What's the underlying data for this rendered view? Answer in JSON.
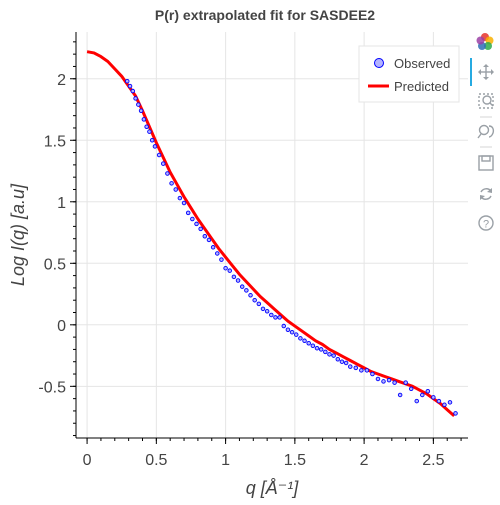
{
  "toolbar": {
    "tools": [
      "bokeh-logo",
      "pan",
      "box-zoom",
      "wheel-zoom",
      "save",
      "reset",
      "help"
    ],
    "help_label": "?"
  },
  "chart_data": {
    "type": "scatter",
    "title": "P(r) extrapolated fit for SASDEE2",
    "xlabel": "q [Å⁻¹]",
    "ylabel": "Log I(q) [a.u]",
    "xlim": [
      -0.08,
      2.75
    ],
    "ylim": [
      -0.92,
      2.38
    ],
    "x_ticks": [
      0,
      0.5,
      1,
      1.5,
      2,
      2.5
    ],
    "x_tick_labels": [
      "0",
      "0.5",
      "1",
      "1.5",
      "2",
      "2.5"
    ],
    "y_ticks": [
      -0.5,
      0,
      0.5,
      1,
      1.5,
      2
    ],
    "y_tick_labels": [
      "-0.5",
      "0",
      "0.5",
      "1",
      "1.5",
      "2"
    ],
    "grid": true,
    "legend_position": "top-right",
    "series": [
      {
        "name": "Observed",
        "kind": "points",
        "color": "#0000ff",
        "fill": "#b3b3ff",
        "x": [
          0.29,
          0.31,
          0.33,
          0.35,
          0.37,
          0.39,
          0.41,
          0.43,
          0.45,
          0.47,
          0.49,
          0.52,
          0.55,
          0.58,
          0.61,
          0.64,
          0.67,
          0.7,
          0.73,
          0.76,
          0.79,
          0.82,
          0.85,
          0.88,
          0.91,
          0.94,
          0.97,
          1.0,
          1.03,
          1.06,
          1.09,
          1.12,
          1.15,
          1.18,
          1.21,
          1.24,
          1.27,
          1.3,
          1.33,
          1.36,
          1.39,
          1.42,
          1.45,
          1.48,
          1.51,
          1.54,
          1.57,
          1.6,
          1.63,
          1.66,
          1.69,
          1.72,
          1.75,
          1.78,
          1.81,
          1.84,
          1.87,
          1.9,
          1.94,
          1.98,
          2.02,
          2.06,
          2.1,
          2.14,
          2.18,
          2.22,
          2.26,
          2.3,
          2.34,
          2.38,
          2.42,
          2.46,
          2.5,
          2.54,
          2.58,
          2.62,
          2.66
        ],
        "y": [
          1.98,
          1.94,
          1.9,
          1.84,
          1.79,
          1.74,
          1.67,
          1.61,
          1.57,
          1.5,
          1.45,
          1.38,
          1.31,
          1.23,
          1.15,
          1.1,
          1.03,
          0.99,
          0.91,
          0.86,
          0.82,
          0.78,
          0.72,
          0.69,
          0.63,
          0.58,
          0.53,
          0.46,
          0.44,
          0.39,
          0.36,
          0.31,
          0.28,
          0.24,
          0.2,
          0.17,
          0.13,
          0.11,
          0.08,
          0.06,
          0.06,
          -0.01,
          -0.04,
          -0.06,
          -0.08,
          -0.11,
          -0.13,
          -0.15,
          -0.17,
          -0.19,
          -0.2,
          -0.22,
          -0.24,
          -0.25,
          -0.28,
          -0.3,
          -0.31,
          -0.34,
          -0.35,
          -0.37,
          -0.37,
          -0.4,
          -0.44,
          -0.46,
          -0.45,
          -0.47,
          -0.57,
          -0.47,
          -0.52,
          -0.62,
          -0.57,
          -0.54,
          -0.59,
          -0.62,
          -0.65,
          -0.63,
          -0.72
        ]
      },
      {
        "name": "Predicted",
        "kind": "line",
        "color": "#ff0000",
        "x": [
          0.0,
          0.05,
          0.1,
          0.15,
          0.2,
          0.25,
          0.3,
          0.35,
          0.4,
          0.45,
          0.5,
          0.55,
          0.6,
          0.65,
          0.7,
          0.75,
          0.8,
          0.85,
          0.9,
          0.95,
          1.0,
          1.05,
          1.1,
          1.15,
          1.2,
          1.25,
          1.3,
          1.35,
          1.4,
          1.45,
          1.5,
          1.55,
          1.6,
          1.65,
          1.7,
          1.75,
          1.8,
          1.85,
          1.9,
          1.95,
          2.0,
          2.05,
          2.1,
          2.15,
          2.2,
          2.25,
          2.3,
          2.35,
          2.4,
          2.45,
          2.5,
          2.55,
          2.6,
          2.65
        ],
        "y": [
          2.22,
          2.21,
          2.18,
          2.14,
          2.08,
          2.02,
          1.94,
          1.86,
          1.74,
          1.61,
          1.48,
          1.36,
          1.24,
          1.14,
          1.04,
          0.95,
          0.86,
          0.78,
          0.7,
          0.62,
          0.55,
          0.48,
          0.41,
          0.35,
          0.29,
          0.23,
          0.18,
          0.13,
          0.08,
          0.03,
          -0.01,
          -0.05,
          -0.09,
          -0.13,
          -0.16,
          -0.2,
          -0.23,
          -0.26,
          -0.29,
          -0.32,
          -0.35,
          -0.38,
          -0.4,
          -0.42,
          -0.44,
          -0.46,
          -0.48,
          -0.5,
          -0.53,
          -0.56,
          -0.6,
          -0.64,
          -0.69,
          -0.74
        ]
      }
    ]
  }
}
